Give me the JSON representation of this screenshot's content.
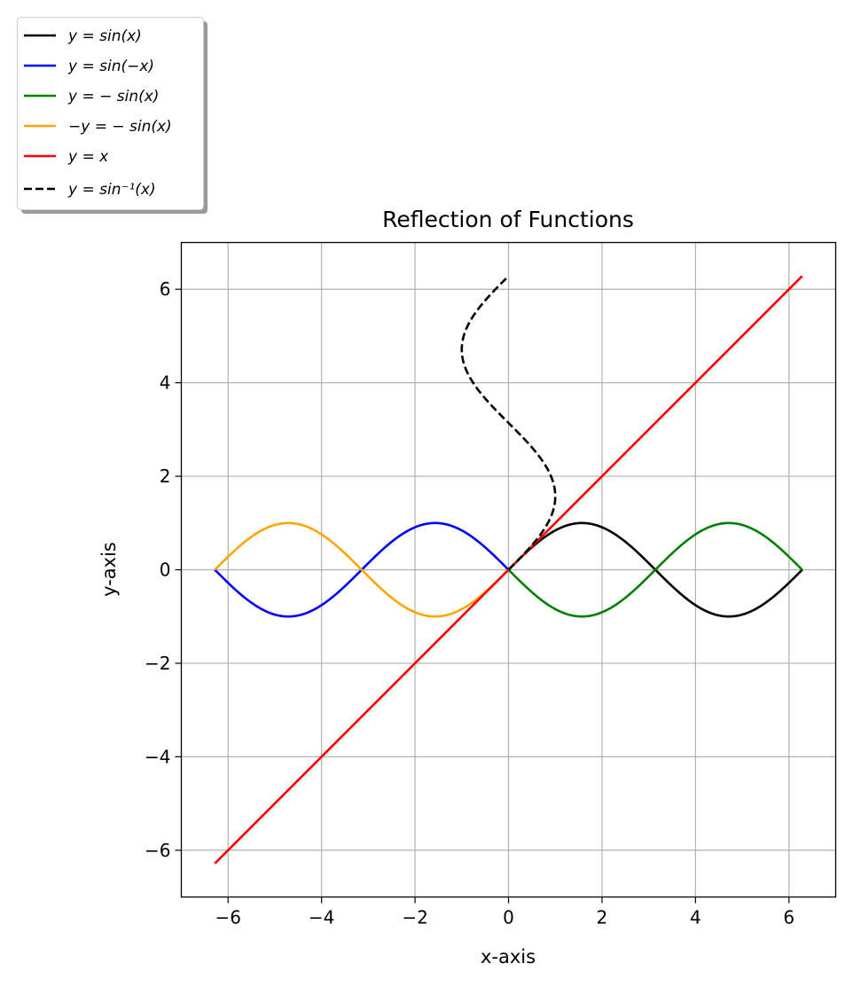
{
  "chart_data": {
    "type": "line",
    "title": "Reflection of Functions",
    "xlabel": "x-axis",
    "ylabel": "y-axis",
    "xlim": [
      -7,
      7
    ],
    "ylim": [
      -7,
      7
    ],
    "xticks": [
      -6,
      -4,
      -2,
      0,
      2,
      4,
      6
    ],
    "yticks": [
      -6,
      -4,
      -2,
      0,
      2,
      4,
      6
    ],
    "xtick_labels": [
      "−6",
      "−4",
      "−2",
      "0",
      "2",
      "4",
      "6"
    ],
    "ytick_labels": [
      "−6",
      "−4",
      "−2",
      "0",
      "2",
      "4",
      "6"
    ],
    "grid": true,
    "legend_position": "outside-top-left",
    "series": [
      {
        "name": "y = sin(x)",
        "color": "#000000",
        "dash": "solid",
        "func": "sin",
        "domain": [
          0,
          6.2832
        ]
      },
      {
        "name": "y = sin(−x)",
        "color": "#0000ff",
        "dash": "solid",
        "func": "sin_neg",
        "domain": [
          -6.2832,
          0
        ]
      },
      {
        "name": "y = − sin(x)",
        "color": "#008000",
        "dash": "solid",
        "func": "neg_sin",
        "domain": [
          0,
          6.2832
        ]
      },
      {
        "name": "−y = − sin(x)",
        "color": "#ffa500",
        "dash": "solid",
        "func": "neg_sin_reflected",
        "domain": [
          -6.2832,
          0
        ]
      },
      {
        "name": "y = x",
        "color": "#ff0000",
        "dash": "solid",
        "func": "identity",
        "domain": [
          -6.2832,
          6.2832
        ]
      },
      {
        "name": "y = sin⁻¹(x)",
        "color": "#000000",
        "dash": "dashed",
        "func": "inverse_sin",
        "domain": [
          0,
          6.2832
        ]
      }
    ]
  }
}
